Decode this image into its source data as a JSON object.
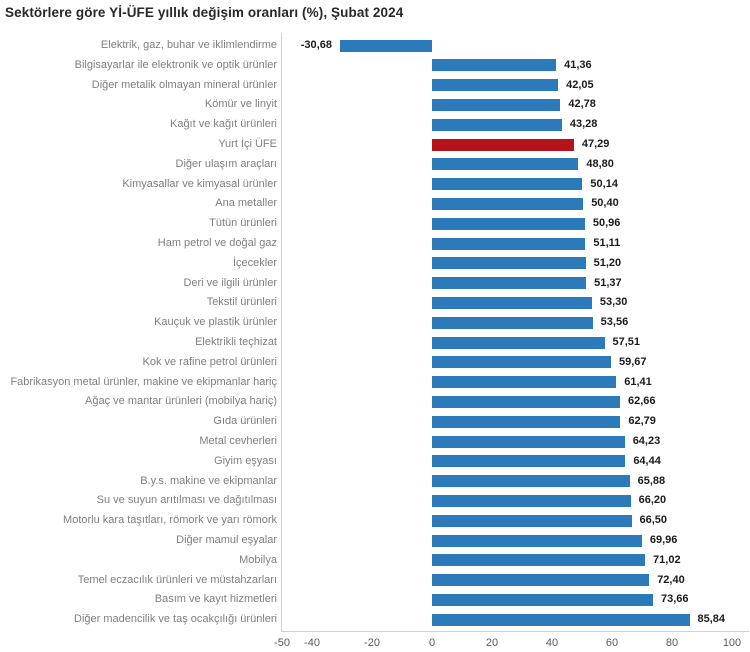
{
  "page": {
    "title": "Sektörlere göre Yİ-ÜFE yıllık değişim oranları (%), Şubat 2024"
  },
  "chart_data": {
    "type": "bar",
    "orientation": "horizontal",
    "title": "Sektörlere göre Yİ-ÜFE yıllık değişim oranları (%), Şubat 2024",
    "xlabel": "",
    "ylabel": "",
    "xlim": [
      -50,
      100
    ],
    "grid": false,
    "legend": false,
    "categories": [
      "Elektrik, gaz, buhar ve iklimlendirme",
      "Bilgisayarlar ile elektronik ve optik ürünler",
      "Diğer metalik olmayan mineral ürünler",
      "Kömür ve linyit",
      "Kağıt ve kağıt ürünleri",
      "Yurt İçi ÜFE",
      "Diğer ulaşım araçları",
      "Kimyasallar ve kimyasal ürünler",
      "Ana metaller",
      "Tütün ürünleri",
      "Ham petrol ve doğal gaz",
      "İçecekler",
      "Deri ve ilgili ürünler",
      "Tekstil ürünleri",
      "Kauçuk ve plastik ürünler",
      "Elektrikli teçhizat",
      "Kok ve rafine petrol ürünleri",
      "Fabrikasyon metal ürünler, makine ve ekipmanlar hariç",
      "Ağaç ve mantar ürünleri (mobilya hariç)",
      "Gıda ürünleri",
      "Metal cevherleri",
      "Giyim eşyası",
      "B.y.s. makine ve ekipmanlar",
      "Su ve suyun arıtılması ve dağıtılması",
      "Motorlu kara taşıtları, römork ve yarı römork",
      "Diğer mamul eşyalar",
      "Mobilya",
      "Temel eczacılık ürünleri ve müstahzarları",
      "Basım ve kayıt hizmetleri",
      "Diğer madencilik ve taş ocakçılığı ürünleri"
    ],
    "values": [
      -30.68,
      41.36,
      42.05,
      42.78,
      43.28,
      47.29,
      48.8,
      50.14,
      50.4,
      50.96,
      51.11,
      51.2,
      51.37,
      53.3,
      53.56,
      57.51,
      59.67,
      61.41,
      62.66,
      62.79,
      64.23,
      64.44,
      65.88,
      66.2,
      66.5,
      69.96,
      71.02,
      72.4,
      73.66,
      85.84
    ],
    "value_labels": [
      "-30,68",
      "41,36",
      "42,05",
      "42,78",
      "43,28",
      "47,29",
      "48,80",
      "50,14",
      "50,40",
      "50,96",
      "51,11",
      "51,20",
      "51,37",
      "53,30",
      "53,56",
      "57,51",
      "59,67",
      "61,41",
      "62,66",
      "62,79",
      "64,23",
      "64,44",
      "65,88",
      "66,20",
      "66,50",
      "69,96",
      "71,02",
      "72,40",
      "73,66",
      "85,84"
    ],
    "highlight_category": "Yurt İçi ÜFE",
    "highlight_index": 5,
    "x_ticks": [
      -50,
      -40,
      -20,
      0,
      20,
      40,
      60,
      80,
      100
    ],
    "x_tick_labels": [
      "-50",
      "-40",
      "-20",
      "0",
      "20",
      "40",
      "60",
      "80",
      "100"
    ],
    "colors": {
      "bar": "#2d7aba",
      "highlight_bar": "#b5121a",
      "category_label": "#7f7f7f",
      "value_label": "#1c1c1c",
      "tick_label": "#595959",
      "axis_line": "#d0d0d0",
      "title": "#26282e"
    }
  }
}
